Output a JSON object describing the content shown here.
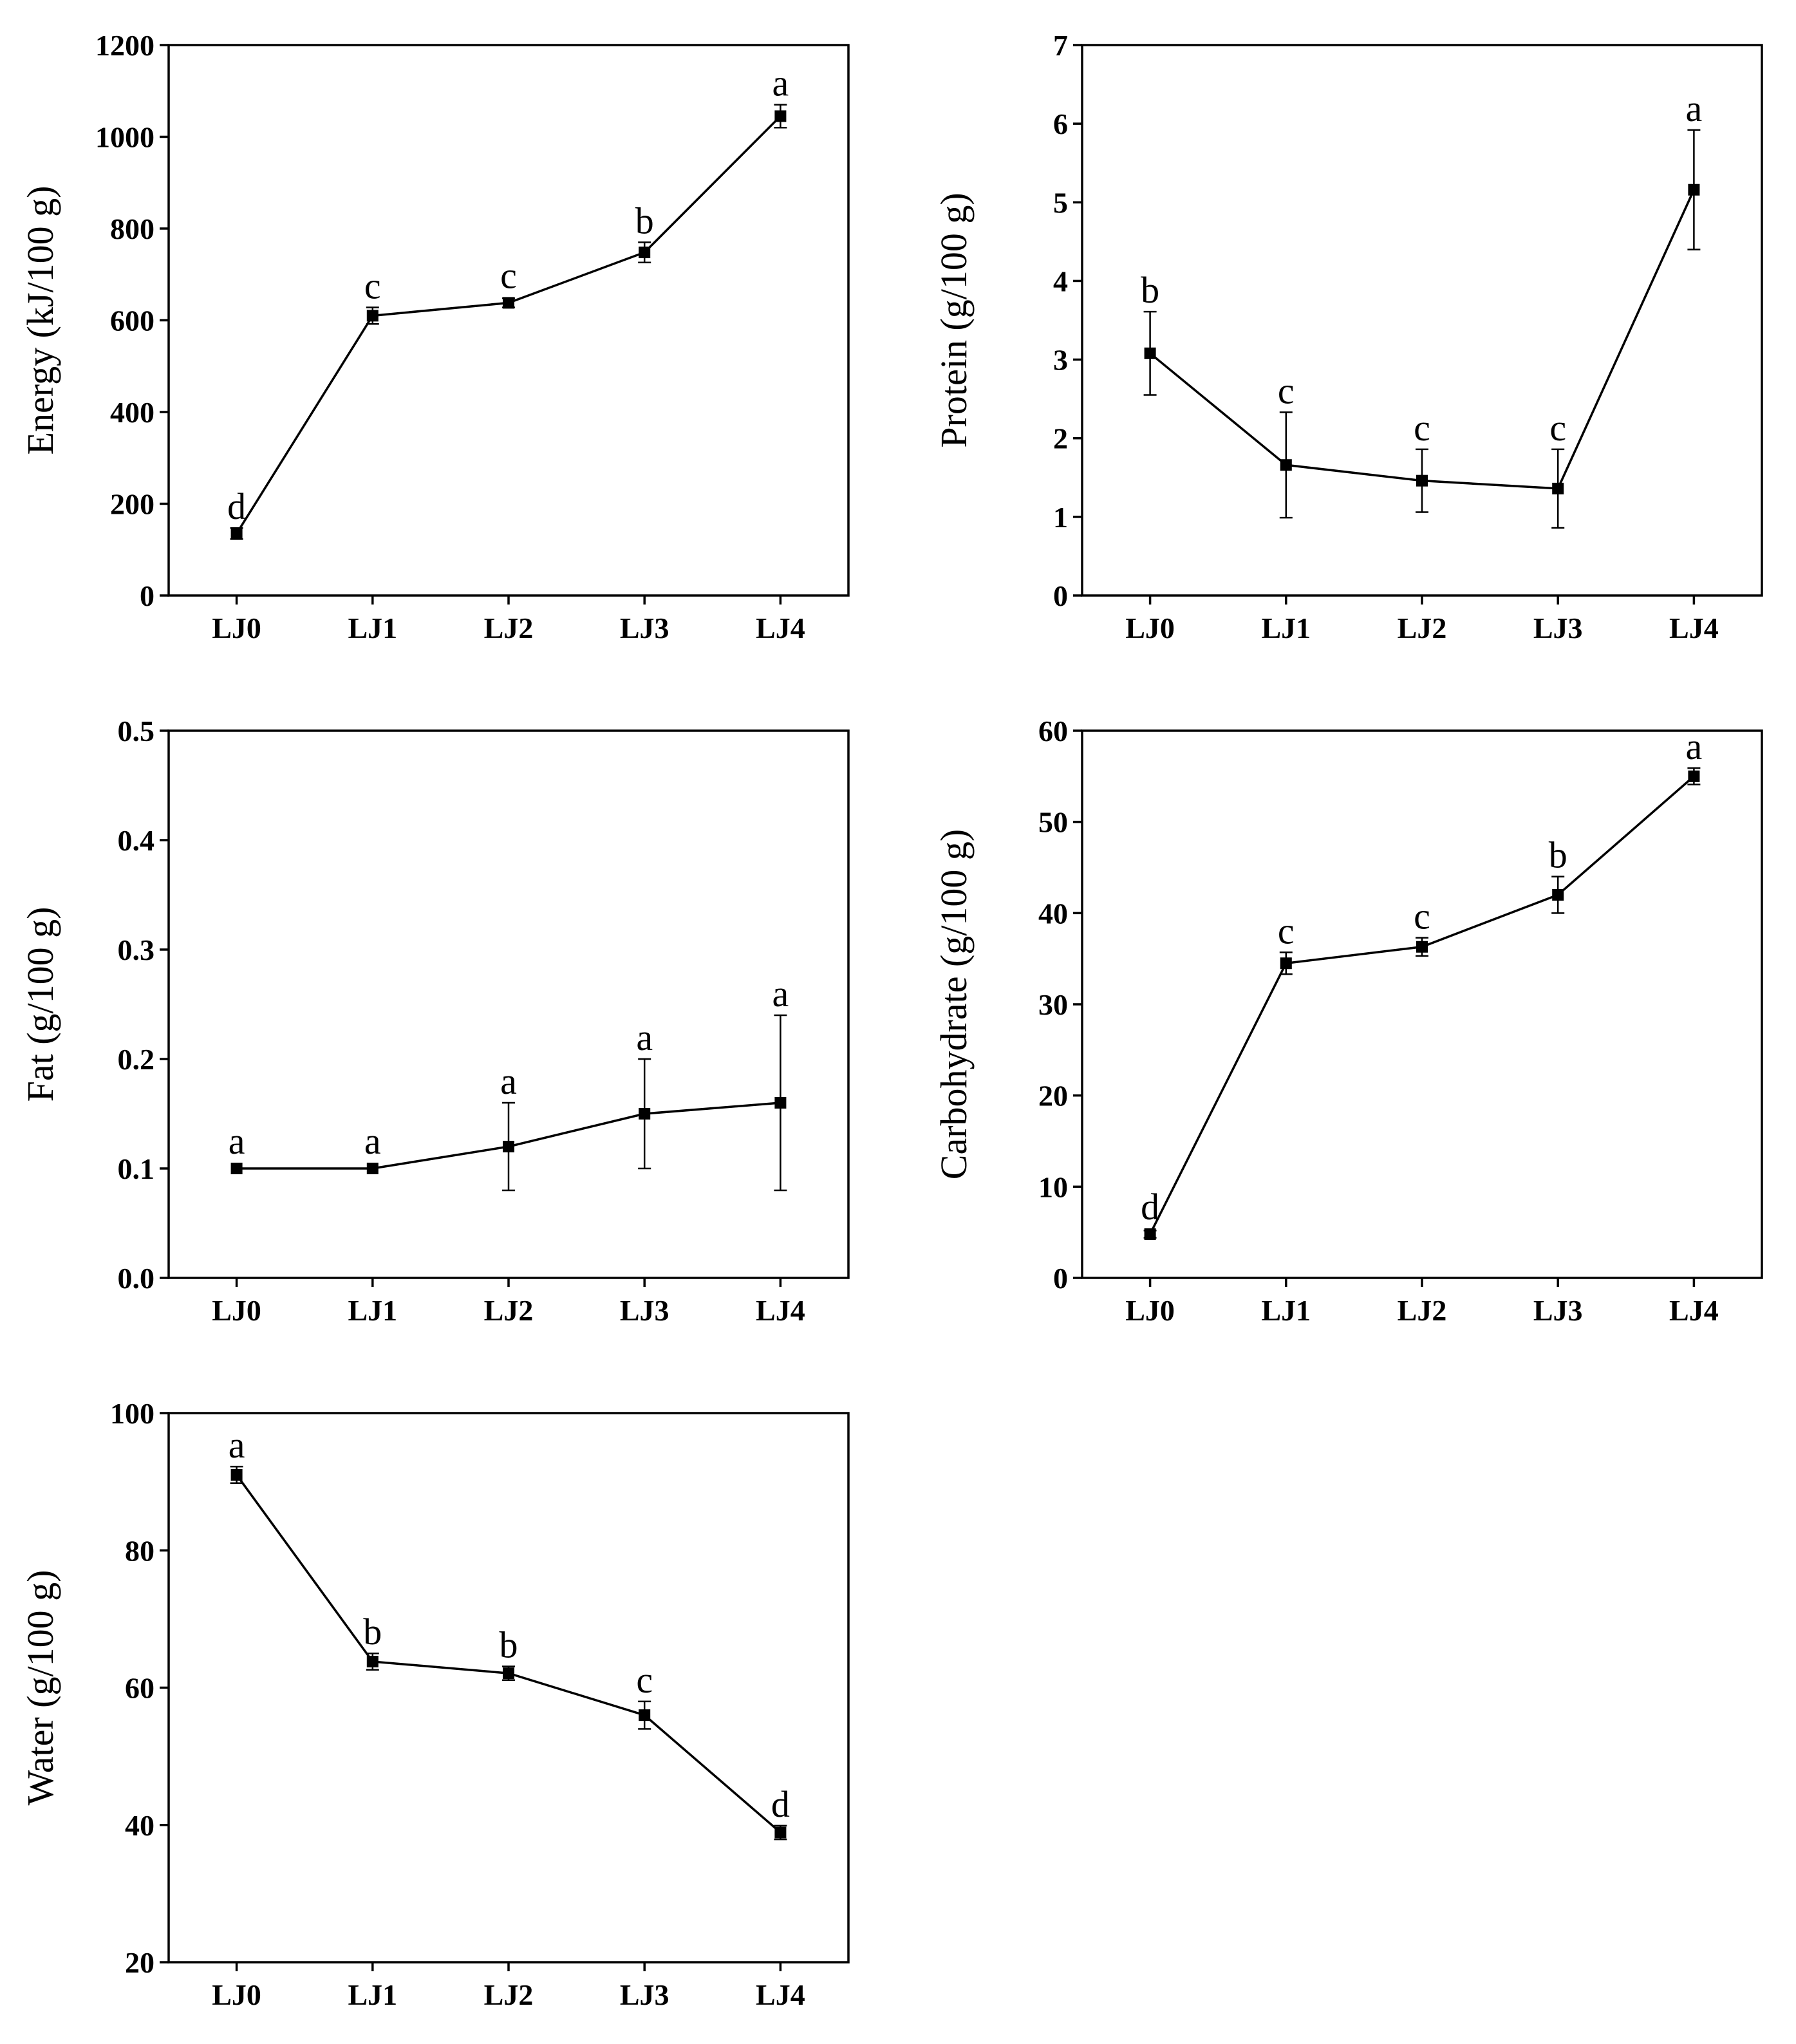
{
  "chart_data": [
    {
      "type": "line",
      "categories": [
        "LJ0",
        "LJ1",
        "LJ2",
        "LJ3",
        "LJ4"
      ],
      "values": [
        135,
        610,
        638,
        748,
        1045
      ],
      "error": [
        12,
        18,
        10,
        22,
        25
      ],
      "significance": [
        "d",
        "c",
        "c",
        "b",
        "a"
      ],
      "ylabel": "Energy (kJ/100 g)",
      "ylim": [
        0,
        1200
      ],
      "yticks": [
        0,
        200,
        400,
        600,
        800,
        1000,
        1200
      ],
      "ytick_labels": [
        "0",
        "200",
        "400",
        "600",
        "800",
        "1000",
        "1200"
      ]
    },
    {
      "type": "line",
      "categories": [
        "LJ0",
        "LJ1",
        "LJ2",
        "LJ3",
        "LJ4"
      ],
      "values": [
        3.08,
        1.66,
        1.46,
        1.36,
        5.16
      ],
      "error": [
        0.53,
        0.67,
        0.4,
        0.5,
        0.76
      ],
      "significance": [
        "b",
        "c",
        "c",
        "c",
        "a"
      ],
      "ylabel": "Protein (g/100 g)",
      "ylim": [
        0,
        7
      ],
      "yticks": [
        0,
        1,
        2,
        3,
        4,
        5,
        6,
        7
      ],
      "ytick_labels": [
        "0",
        "1",
        "2",
        "3",
        "4",
        "5",
        "6",
        "7"
      ]
    },
    {
      "type": "line",
      "categories": [
        "LJ0",
        "LJ1",
        "LJ2",
        "LJ3",
        "LJ4"
      ],
      "values": [
        0.1,
        0.1,
        0.12,
        0.15,
        0.16
      ],
      "error": [
        0.0,
        0.0,
        0.04,
        0.05,
        0.08
      ],
      "significance": [
        "a",
        "a",
        "a",
        "a",
        "a"
      ],
      "ylabel": "Fat (g/100 g)",
      "ylim": [
        0,
        0.5
      ],
      "yticks": [
        0,
        0.1,
        0.2,
        0.3,
        0.4,
        0.5
      ],
      "ytick_labels": [
        "0.0",
        "0.1",
        "0.2",
        "0.3",
        "0.4",
        "0.5"
      ]
    },
    {
      "type": "line",
      "categories": [
        "LJ0",
        "LJ1",
        "LJ2",
        "LJ3",
        "LJ4"
      ],
      "values": [
        4.8,
        34.5,
        36.3,
        42.0,
        55.0
      ],
      "error": [
        0.4,
        1.2,
        1.0,
        2.0,
        0.9
      ],
      "significance": [
        "d",
        "c",
        "c",
        "b",
        "a"
      ],
      "ylabel": "Carbohydrate (g/100 g)",
      "ylim": [
        0,
        60
      ],
      "yticks": [
        0,
        10,
        20,
        30,
        40,
        50,
        60
      ],
      "ytick_labels": [
        "0",
        "10",
        "20",
        "30",
        "40",
        "50",
        "60"
      ]
    },
    {
      "type": "line",
      "categories": [
        "LJ0",
        "LJ1",
        "LJ2",
        "LJ3",
        "LJ4"
      ],
      "values": [
        91.0,
        63.8,
        62.1,
        56.0,
        38.9
      ],
      "error": [
        1.2,
        1.2,
        1.0,
        2.0,
        1.0
      ],
      "significance": [
        "a",
        "b",
        "b",
        "c",
        "d"
      ],
      "ylabel": "Water (g/100 g)",
      "ylim": [
        20,
        100
      ],
      "yticks": [
        20,
        40,
        60,
        80,
        100
      ],
      "ytick_labels": [
        "20",
        "40",
        "60",
        "80",
        "100"
      ]
    }
  ]
}
